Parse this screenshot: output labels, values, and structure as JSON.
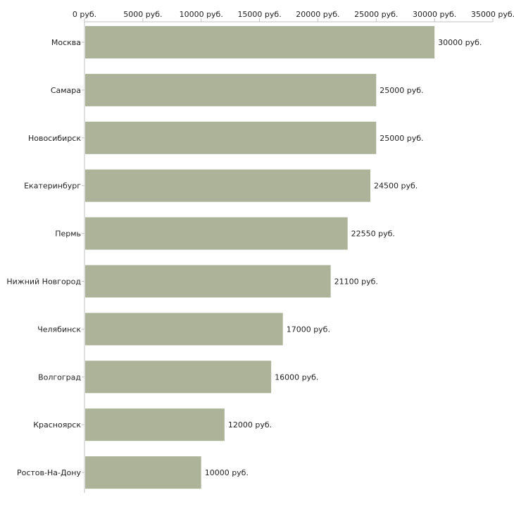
{
  "chart_data": {
    "type": "bar",
    "orientation": "horizontal",
    "title": "",
    "xlabel": "",
    "ylabel": "",
    "unit_suffix": " руб.",
    "xlim": [
      0,
      35000
    ],
    "x_ticks": [
      0,
      5000,
      10000,
      15000,
      20000,
      25000,
      30000,
      35000
    ],
    "x_tick_labels": [
      "0 руб.",
      "5000 руб.",
      "10000 руб.",
      "15000 руб.",
      "20000 руб.",
      "25000 руб.",
      "30000 руб.",
      "35000 руб."
    ],
    "categories": [
      "Москва",
      "Самара",
      "Новосибирск",
      "Екатеринбург",
      "Пермь",
      "Нижний Новгород",
      "Челябинск",
      "Волгоград",
      "Красноярск",
      "Ростов-На-Дону"
    ],
    "values": [
      30000,
      25000,
      25000,
      24500,
      22550,
      21100,
      17000,
      16000,
      12000,
      10000
    ],
    "value_labels": [
      "30000 руб.",
      "25000 руб.",
      "25000 руб.",
      "24500 руб.",
      "22550 руб.",
      "21100 руб.",
      "17000 руб.",
      "16000 руб.",
      "12000 руб.",
      "10000 руб."
    ],
    "legend": "none",
    "grid": false,
    "colors": {
      "bar": "#acb398",
      "axis": "#c0c0c0",
      "text": "#222222"
    }
  }
}
